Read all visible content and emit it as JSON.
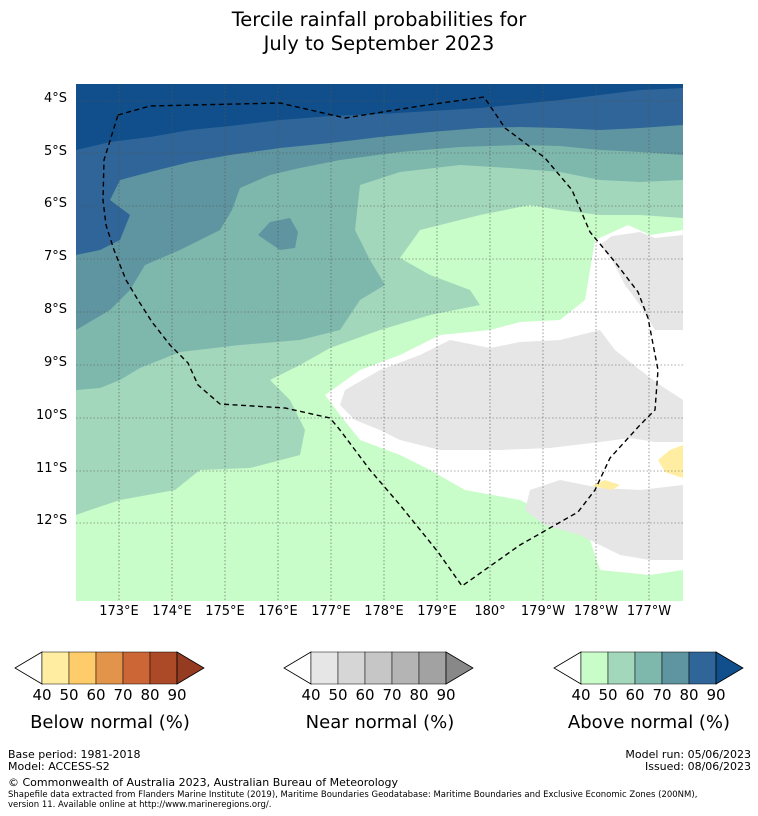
{
  "title_line1": "Tercile rainfall probabilities for",
  "title_line2": "July to September 2023",
  "lat_labels": [
    "4°S",
    "5°S",
    "6°S",
    "7°S",
    "8°S",
    "9°S",
    "10°S",
    "11°S",
    "12°S"
  ],
  "lon_labels": [
    "173°E",
    "174°E",
    "175°E",
    "176°E",
    "177°E",
    "178°E",
    "179°E",
    "180°",
    "179°W",
    "178°W",
    "177°W"
  ],
  "colorbars": {
    "below": {
      "caption": "Below normal (%)",
      "ticks": [
        "40",
        "50",
        "60",
        "70",
        "80",
        "90"
      ],
      "colors": [
        "#ffeea1",
        "#fecc6a",
        "#e3944b",
        "#cc6637",
        "#ac4927",
        "#943b21"
      ]
    },
    "near": {
      "caption": "Near normal (%)",
      "ticks": [
        "40",
        "50",
        "60",
        "70",
        "80",
        "90"
      ],
      "colors": [
        "#e6e6e6",
        "#d6d6d6",
        "#c6c6c6",
        "#b4b4b4",
        "#a2a2a2",
        "#888888"
      ]
    },
    "above": {
      "caption": "Above normal (%)",
      "ticks": [
        "40",
        "50",
        "60",
        "70",
        "80",
        "90"
      ],
      "colors": [
        "#c8fcc8",
        "#a2d7bb",
        "#7eb8ad",
        "#5e95a0",
        "#2f6598",
        "#104f8b"
      ]
    }
  },
  "footer": {
    "base_period": "Base period: 1981-2018",
    "model": "Model: ACCESS-S2",
    "model_run": "Model run: 05/06/2023",
    "issued": "Issued: 08/06/2023",
    "copyright": "© Commonwealth of Australia 2023, Australian Bureau of Meteorology",
    "shapefile_line1": "Shapefile data extracted from Flanders Marine Institute (2019), Maritime Boundaries Geodatabase: Maritime Boundaries and Exclusive Economic Zones (200NM),",
    "shapefile_line2": "version 11. Available online at http://www.marineregions.org/."
  }
}
